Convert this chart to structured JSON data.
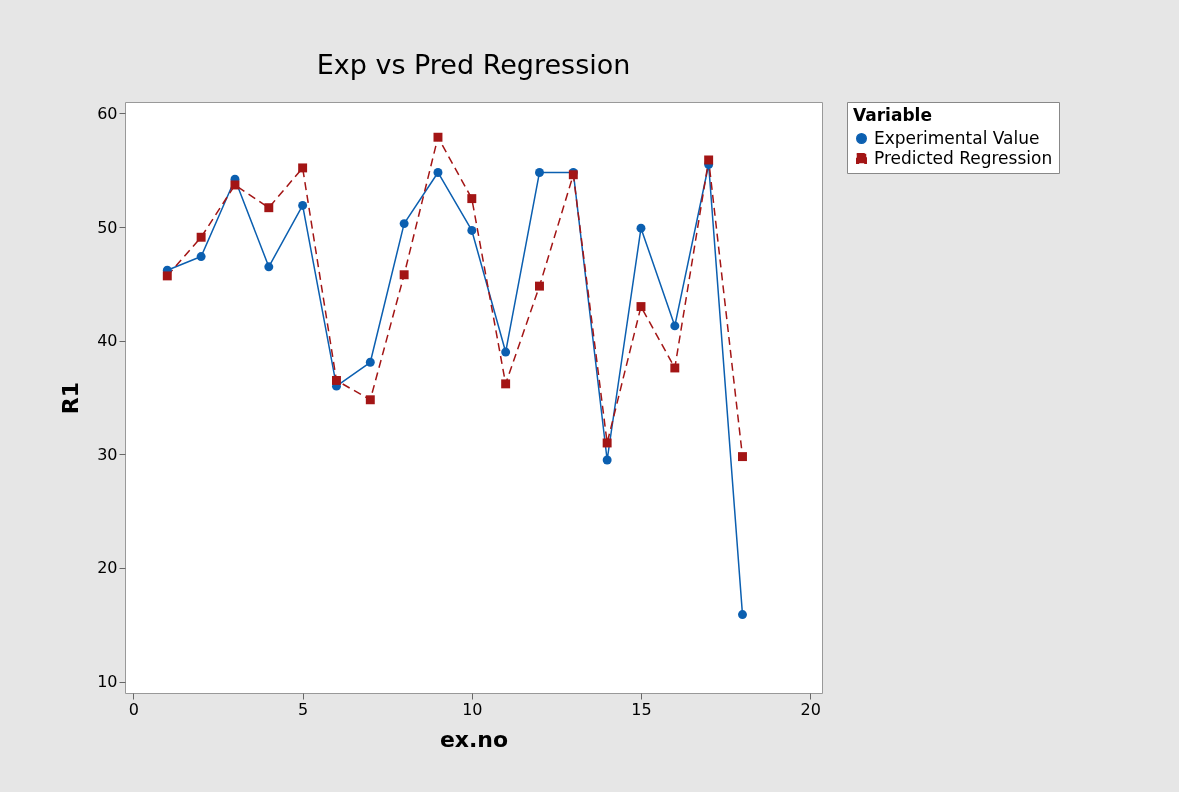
{
  "chart_data": {
    "type": "line",
    "title": "Exp vs Pred Regression",
    "xlabel": "ex.no",
    "ylabel": "R1",
    "legend_title": "Variable",
    "legend": "top right",
    "grid": false,
    "x": [
      1,
      2,
      3,
      4,
      5,
      6,
      7,
      8,
      9,
      10,
      11,
      12,
      13,
      14,
      15,
      16,
      17,
      18
    ],
    "xlim": [
      -0.25,
      20.35
    ],
    "xticks": [
      0,
      5,
      10,
      15,
      20
    ],
    "ylim": [
      9,
      61
    ],
    "yticks": [
      10,
      20,
      30,
      40,
      50,
      60
    ],
    "series": [
      {
        "name": "Experimental Value",
        "color": "#0b5fb0",
        "marker": "circle",
        "line_style": "solid",
        "values": [
          46.2,
          47.4,
          54.2,
          46.5,
          51.9,
          36.0,
          38.1,
          50.3,
          54.8,
          49.7,
          39.0,
          54.8,
          54.8,
          29.5,
          49.9,
          41.3,
          55.5,
          15.9
        ]
      },
      {
        "name": "Predicted Regression",
        "color": "#a31515",
        "marker": "square",
        "line_style": "dashed",
        "values": [
          45.7,
          49.1,
          53.7,
          51.7,
          55.2,
          36.5,
          34.8,
          45.8,
          57.9,
          52.5,
          36.2,
          44.8,
          54.6,
          31.0,
          43.0,
          37.6,
          55.9,
          29.8
        ]
      }
    ]
  }
}
